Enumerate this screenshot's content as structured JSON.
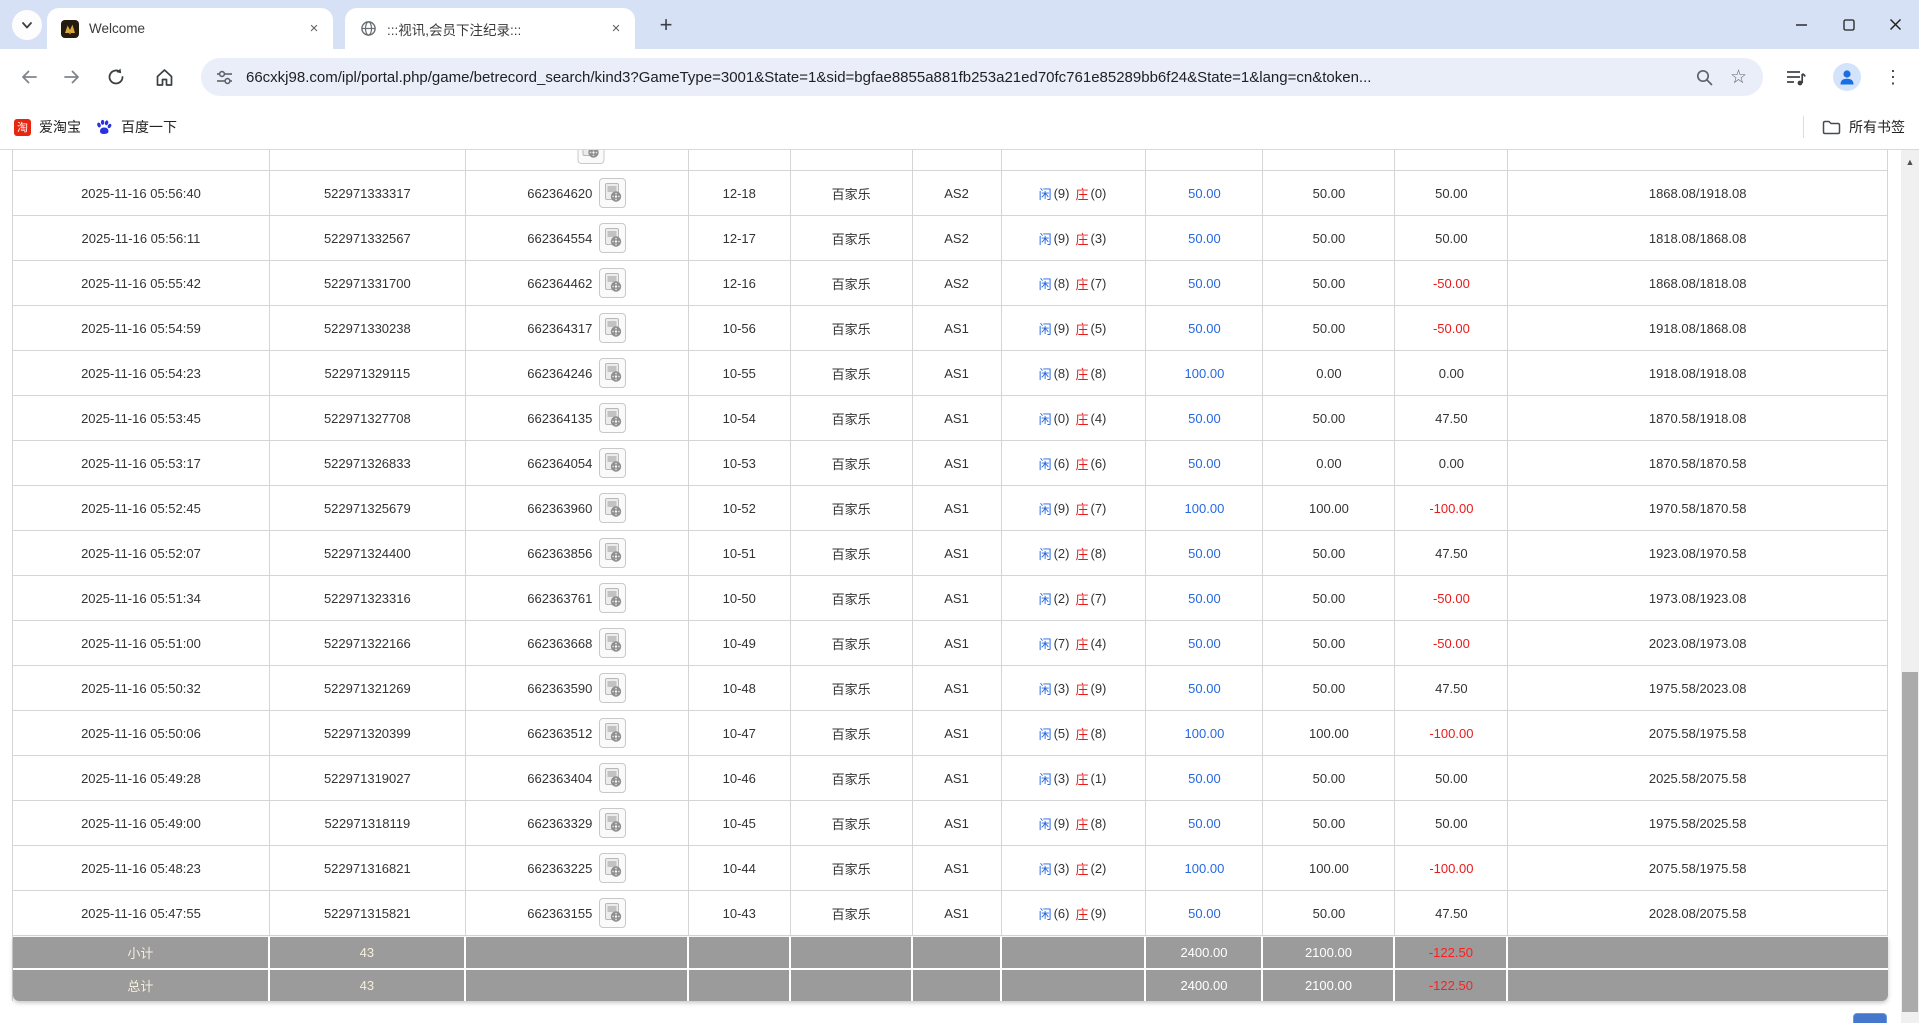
{
  "browser": {
    "tabs": [
      {
        "title": "Welcome"
      },
      {
        "title": ":::视讯,会员下注纪录:::"
      }
    ],
    "url": "66cxkj98.com/ipl/portal.php/game/betrecord_search/kind3?GameType=3001&State=1&sid=bgfae8855a881fb253a21ed70fc761e85289bb6f24&State=1&lang=cn&token...",
    "bookmarks": [
      {
        "label": "爱淘宝"
      },
      {
        "label": "百度一下"
      }
    ],
    "all_bookmarks_label": "所有书签"
  },
  "icons": {
    "star": "☆",
    "new_tab": "+",
    "menu_kebab": "⋮",
    "scroll_up_arrow": "▲",
    "tab_close": "×",
    "taobao_glyph": "淘"
  },
  "colors": {
    "accent_blue": "#2667e0",
    "negative_red": "#e81b1b",
    "footer_grey": "#9b9b9b"
  },
  "table": {
    "rows": [
      {
        "time": "2025-11-16 05:56:40",
        "bill_no": "522971333317",
        "round_no": "662364620",
        "table_no": "12-18",
        "game": "百家乐",
        "seat": "AS2",
        "bet": {
          "player_label": "闲",
          "player_value": "(9)",
          "banker_label": "庄",
          "banker_value": "(0)"
        },
        "bet_amount": "50.00",
        "valid_amount": "50.00",
        "win_loss": "50.00",
        "balance": "1868.08/1918.08"
      },
      {
        "time": "2025-11-16 05:56:11",
        "bill_no": "522971332567",
        "round_no": "662364554",
        "table_no": "12-17",
        "game": "百家乐",
        "seat": "AS2",
        "bet": {
          "player_label": "闲",
          "player_value": "(9)",
          "banker_label": "庄",
          "banker_value": "(3)"
        },
        "bet_amount": "50.00",
        "valid_amount": "50.00",
        "win_loss": "50.00",
        "balance": "1818.08/1868.08"
      },
      {
        "time": "2025-11-16 05:55:42",
        "bill_no": "522971331700",
        "round_no": "662364462",
        "table_no": "12-16",
        "game": "百家乐",
        "seat": "AS2",
        "bet": {
          "player_label": "闲",
          "player_value": "(8)",
          "banker_label": "庄",
          "banker_value": "(7)"
        },
        "bet_amount": "50.00",
        "valid_amount": "50.00",
        "win_loss": "-50.00",
        "balance": "1868.08/1818.08"
      },
      {
        "time": "2025-11-16 05:54:59",
        "bill_no": "522971330238",
        "round_no": "662364317",
        "table_no": "10-56",
        "game": "百家乐",
        "seat": "AS1",
        "bet": {
          "player_label": "闲",
          "player_value": "(9)",
          "banker_label": "庄",
          "banker_value": "(5)"
        },
        "bet_amount": "50.00",
        "valid_amount": "50.00",
        "win_loss": "-50.00",
        "balance": "1918.08/1868.08"
      },
      {
        "time": "2025-11-16 05:54:23",
        "bill_no": "522971329115",
        "round_no": "662364246",
        "table_no": "10-55",
        "game": "百家乐",
        "seat": "AS1",
        "bet": {
          "player_label": "闲",
          "player_value": "(8)",
          "banker_label": "庄",
          "banker_value": "(8)"
        },
        "bet_amount": "100.00",
        "valid_amount": "0.00",
        "win_loss": "0.00",
        "balance": "1918.08/1918.08"
      },
      {
        "time": "2025-11-16 05:53:45",
        "bill_no": "522971327708",
        "round_no": "662364135",
        "table_no": "10-54",
        "game": "百家乐",
        "seat": "AS1",
        "bet": {
          "player_label": "闲",
          "player_value": "(0)",
          "banker_label": "庄",
          "banker_value": "(4)"
        },
        "bet_amount": "50.00",
        "valid_amount": "50.00",
        "win_loss": "47.50",
        "balance": "1870.58/1918.08"
      },
      {
        "time": "2025-11-16 05:53:17",
        "bill_no": "522971326833",
        "round_no": "662364054",
        "table_no": "10-53",
        "game": "百家乐",
        "seat": "AS1",
        "bet": {
          "player_label": "闲",
          "player_value": "(6)",
          "banker_label": "庄",
          "banker_value": "(6)"
        },
        "bet_amount": "50.00",
        "valid_amount": "0.00",
        "win_loss": "0.00",
        "balance": "1870.58/1870.58"
      },
      {
        "time": "2025-11-16 05:52:45",
        "bill_no": "522971325679",
        "round_no": "662363960",
        "table_no": "10-52",
        "game": "百家乐",
        "seat": "AS1",
        "bet": {
          "player_label": "闲",
          "player_value": "(9)",
          "banker_label": "庄",
          "banker_value": "(7)"
        },
        "bet_amount": "100.00",
        "valid_amount": "100.00",
        "win_loss": "-100.00",
        "balance": "1970.58/1870.58"
      },
      {
        "time": "2025-11-16 05:52:07",
        "bill_no": "522971324400",
        "round_no": "662363856",
        "table_no": "10-51",
        "game": "百家乐",
        "seat": "AS1",
        "bet": {
          "player_label": "闲",
          "player_value": "(2)",
          "banker_label": "庄",
          "banker_value": "(8)"
        },
        "bet_amount": "50.00",
        "valid_amount": "50.00",
        "win_loss": "47.50",
        "balance": "1923.08/1970.58"
      },
      {
        "time": "2025-11-16 05:51:34",
        "bill_no": "522971323316",
        "round_no": "662363761",
        "table_no": "10-50",
        "game": "百家乐",
        "seat": "AS1",
        "bet": {
          "player_label": "闲",
          "player_value": "(2)",
          "banker_label": "庄",
          "banker_value": "(7)"
        },
        "bet_amount": "50.00",
        "valid_amount": "50.00",
        "win_loss": "-50.00",
        "balance": "1973.08/1923.08"
      },
      {
        "time": "2025-11-16 05:51:00",
        "bill_no": "522971322166",
        "round_no": "662363668",
        "table_no": "10-49",
        "game": "百家乐",
        "seat": "AS1",
        "bet": {
          "player_label": "闲",
          "player_value": "(7)",
          "banker_label": "庄",
          "banker_value": "(4)"
        },
        "bet_amount": "50.00",
        "valid_amount": "50.00",
        "win_loss": "-50.00",
        "balance": "2023.08/1973.08"
      },
      {
        "time": "2025-11-16 05:50:32",
        "bill_no": "522971321269",
        "round_no": "662363590",
        "table_no": "10-48",
        "game": "百家乐",
        "seat": "AS1",
        "bet": {
          "player_label": "闲",
          "player_value": "(3)",
          "banker_label": "庄",
          "banker_value": "(9)"
        },
        "bet_amount": "50.00",
        "valid_amount": "50.00",
        "win_loss": "47.50",
        "balance": "1975.58/2023.08"
      },
      {
        "time": "2025-11-16 05:50:06",
        "bill_no": "522971320399",
        "round_no": "662363512",
        "table_no": "10-47",
        "game": "百家乐",
        "seat": "AS1",
        "bet": {
          "player_label": "闲",
          "player_value": "(5)",
          "banker_label": "庄",
          "banker_value": "(8)"
        },
        "bet_amount": "100.00",
        "valid_amount": "100.00",
        "win_loss": "-100.00",
        "balance": "2075.58/1975.58"
      },
      {
        "time": "2025-11-16 05:49:28",
        "bill_no": "522971319027",
        "round_no": "662363404",
        "table_no": "10-46",
        "game": "百家乐",
        "seat": "AS1",
        "bet": {
          "player_label": "闲",
          "player_value": "(3)",
          "banker_label": "庄",
          "banker_value": "(1)"
        },
        "bet_amount": "50.00",
        "valid_amount": "50.00",
        "win_loss": "50.00",
        "balance": "2025.58/2075.58"
      },
      {
        "time": "2025-11-16 05:49:00",
        "bill_no": "522971318119",
        "round_no": "662363329",
        "table_no": "10-45",
        "game": "百家乐",
        "seat": "AS1",
        "bet": {
          "player_label": "闲",
          "player_value": "(9)",
          "banker_label": "庄",
          "banker_value": "(8)"
        },
        "bet_amount": "50.00",
        "valid_amount": "50.00",
        "win_loss": "50.00",
        "balance": "1975.58/2025.58"
      },
      {
        "time": "2025-11-16 05:48:23",
        "bill_no": "522971316821",
        "round_no": "662363225",
        "table_no": "10-44",
        "game": "百家乐",
        "seat": "AS1",
        "bet": {
          "player_label": "闲",
          "player_value": "(3)",
          "banker_label": "庄",
          "banker_value": "(2)"
        },
        "bet_amount": "100.00",
        "valid_amount": "100.00",
        "win_loss": "-100.00",
        "balance": "2075.58/1975.58"
      },
      {
        "time": "2025-11-16 05:47:55",
        "bill_no": "522971315821",
        "round_no": "662363155",
        "table_no": "10-43",
        "game": "百家乐",
        "seat": "AS1",
        "bet": {
          "player_label": "闲",
          "player_value": "(6)",
          "banker_label": "庄",
          "banker_value": "(9)"
        },
        "bet_amount": "50.00",
        "valid_amount": "50.00",
        "win_loss": "47.50",
        "balance": "2028.08/2075.58"
      }
    ],
    "summary_rows": [
      {
        "name": "subtotal-row",
        "cells": [
          "小计",
          "43",
          "",
          "",
          "",
          "",
          "",
          "2400.00",
          "2100.00",
          "-122.50",
          ""
        ]
      },
      {
        "name": "total-row",
        "cells": [
          "总计",
          "43",
          "",
          "",
          "",
          "",
          "",
          "2400.00",
          "2100.00",
          "-122.50",
          ""
        ]
      }
    ]
  }
}
